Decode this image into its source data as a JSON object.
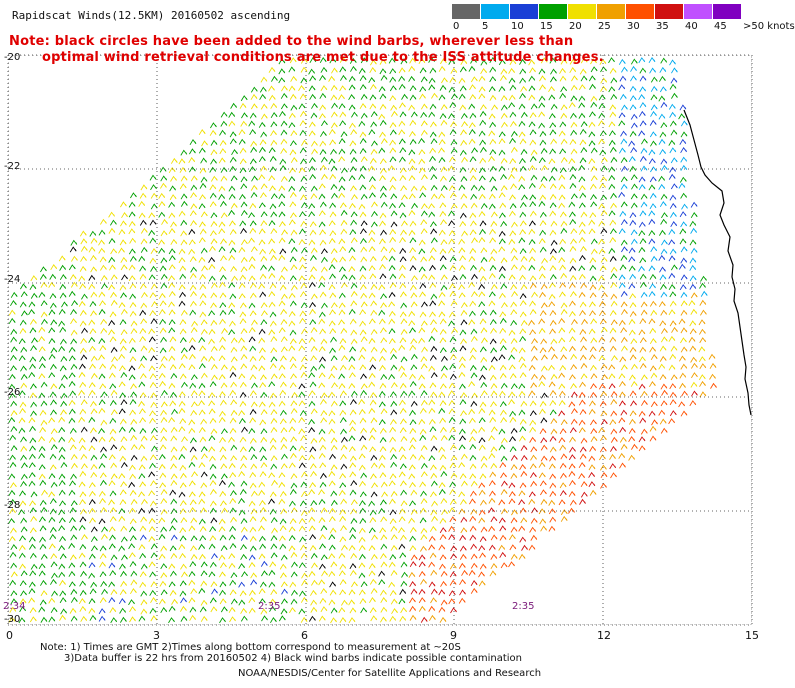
{
  "title": "Rapidscat Winds(12.5KM) 20160502 ascending",
  "note_line1": "Note: black circles have been added to the wind barbs, wherever less than",
  "note_line2": "optimal wind retrieval conditions are met due to the ISS attitude changes.",
  "scale": {
    "labels": [
      "0",
      "5",
      "10",
      "15",
      "20",
      "25",
      "30",
      "35",
      "40",
      "45",
      ">50 knots"
    ],
    "colors": [
      "#666666",
      "#00aaee",
      "#1a3fd6",
      "#00a000",
      "#f0e000",
      "#f0a000",
      "#ff5000",
      "#d01010",
      "#c050ff",
      "#8000c0"
    ]
  },
  "axes": {
    "x_ticks": [
      "0",
      "3",
      "6",
      "9",
      "12",
      "15"
    ],
    "y_ticks": [
      "-20",
      "-22",
      "-24",
      "-26",
      "-28",
      "-30"
    ]
  },
  "times": [
    "2:34",
    "2:35",
    "2:35"
  ],
  "footer": {
    "line1": "Note: 1) Times are GMT 2)Times along bottom correspond to measurement at ~20S",
    "line2": "3)Data buffer is 22 hrs from 20160502 4) Black wind barbs indicate possible contamination",
    "line3": "NOAA/NESDIS/Center for Satellite Applications and Research"
  },
  "map": {
    "grid": "dotted",
    "lon_range": [
      0,
      15
    ],
    "lat_range": [
      -30,
      -20
    ],
    "coastline_color": "#000000"
  }
}
